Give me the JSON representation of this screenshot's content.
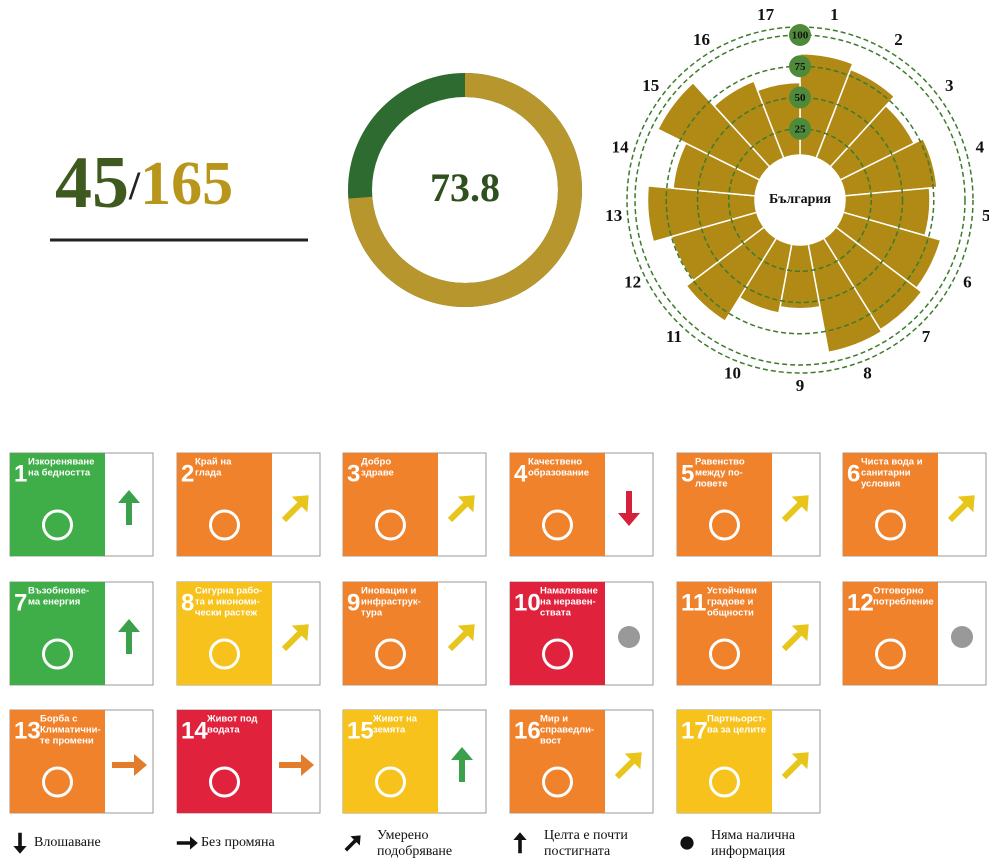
{
  "rank": {
    "value": 45,
    "separator": "/",
    "total": 165
  },
  "score": {
    "value": 73.8,
    "max": 100
  },
  "radial": {
    "center_label": "България",
    "goals": [
      1,
      2,
      3,
      4,
      5,
      6,
      7,
      8,
      9,
      10,
      11,
      12,
      13,
      14,
      15,
      16,
      17
    ],
    "values": [
      85,
      80,
      70,
      78,
      72,
      85,
      90,
      92,
      55,
      60,
      82,
      75,
      90,
      70,
      95,
      70,
      62
    ],
    "ticks": [
      25,
      50,
      75,
      100
    ],
    "lim": [
      0,
      100
    ],
    "color": "#b08a14"
  },
  "tiles": [
    {
      "goal": 1,
      "label": [
        "Изкореняване",
        "на бедността"
      ],
      "color": "#3fae49",
      "trend": "up"
    },
    {
      "goal": 2,
      "label": [
        "Край на",
        "глада"
      ],
      "color": "#f0822c",
      "trend": "moderate"
    },
    {
      "goal": 3,
      "label": [
        "Добро",
        "здраве"
      ],
      "color": "#f0822c",
      "trend": "moderate"
    },
    {
      "goal": 4,
      "label": [
        "Качествено",
        "образование"
      ],
      "color": "#f0822c",
      "trend": "down"
    },
    {
      "goal": 5,
      "label": [
        "Равенство",
        "между по-",
        "ловете"
      ],
      "color": "#f0822c",
      "trend": "moderate"
    },
    {
      "goal": 6,
      "label": [
        "Чиста вода и",
        "санитарни",
        "условия"
      ],
      "color": "#f0822c",
      "trend": "moderate"
    },
    {
      "goal": 7,
      "label": [
        "Възобновяе-",
        "ма енергия"
      ],
      "color": "#3fae49",
      "trend": "up"
    },
    {
      "goal": 8,
      "label": [
        "Сигурна рабо-",
        "та и икономи-",
        "чески растеж"
      ],
      "color": "#f6c21b",
      "trend": "moderate"
    },
    {
      "goal": 9,
      "label": [
        "Иновации и",
        "инфраструк-",
        "тура"
      ],
      "color": "#f0822c",
      "trend": "moderate"
    },
    {
      "goal": 10,
      "label": [
        "Намаляване",
        "на неравен-",
        "ствата"
      ],
      "color": "#e0223d",
      "trend": "none"
    },
    {
      "goal": 11,
      "label": [
        "Устойчиви",
        "градове и",
        "общности"
      ],
      "color": "#f0822c",
      "trend": "moderate"
    },
    {
      "goal": 12,
      "label": [
        "Отговорно",
        "потребление"
      ],
      "color": "#f0822c",
      "trend": "none"
    },
    {
      "goal": 13,
      "label": [
        "Борба с",
        "Климатични-",
        "те промени"
      ],
      "color": "#f0822c",
      "trend": "flat"
    },
    {
      "goal": 14,
      "label": [
        "Живот под",
        "водата"
      ],
      "color": "#e0223d",
      "trend": "flat"
    },
    {
      "goal": 15,
      "label": [
        "Живот на",
        "земята"
      ],
      "color": "#f6c21b",
      "trend": "up"
    },
    {
      "goal": 16,
      "label": [
        "Мир и",
        "справедли-",
        "вост"
      ],
      "color": "#f0822c",
      "trend": "moderate"
    },
    {
      "goal": 17,
      "label": [
        "Партньорст-",
        "ва за целите"
      ],
      "color": "#f6c21b",
      "trend": "moderate"
    }
  ],
  "legend": [
    {
      "trend": "down",
      "label": [
        "Влошаване"
      ]
    },
    {
      "trend": "flat",
      "label": [
        "Без промяна"
      ]
    },
    {
      "trend": "moderate",
      "label": [
        "Умерено",
        "подобряване"
      ]
    },
    {
      "trend": "up",
      "label": [
        "Целта е почти",
        "постигната"
      ]
    },
    {
      "trend": "none",
      "label": [
        "Няма налична",
        "информация"
      ]
    }
  ]
}
